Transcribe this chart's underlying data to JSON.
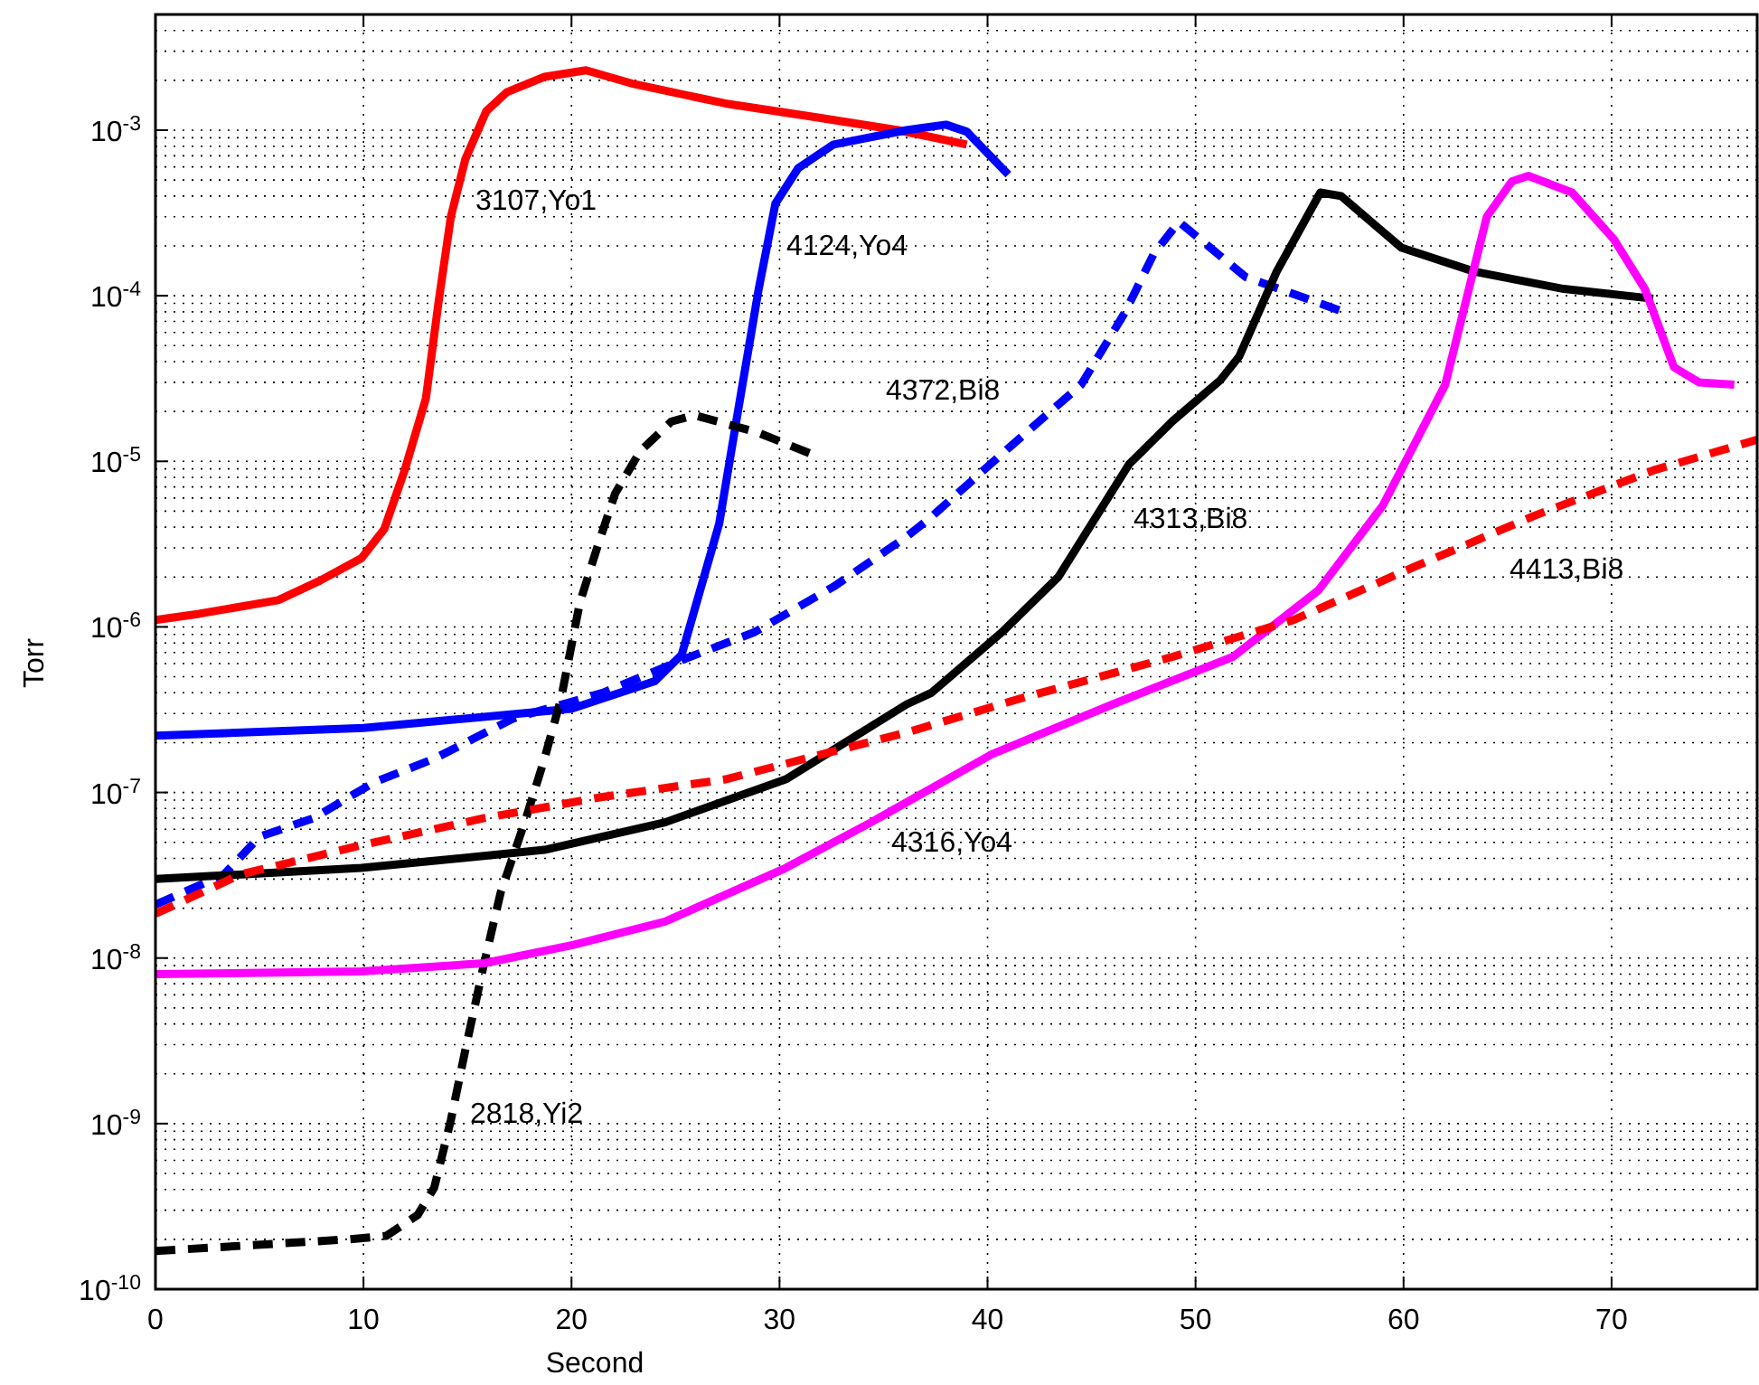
{
  "chart_data": {
    "type": "line",
    "xlabel": "Second",
    "ylabel": "Torr",
    "log": "y",
    "grid": true,
    "marker": "none",
    "xlim": [
      0,
      77
    ],
    "xticks": [
      0,
      10,
      20,
      30,
      40,
      50,
      60,
      70
    ],
    "ylim": [
      1e-10,
      0.005
    ],
    "yticks": [
      {
        "value": 1e-10,
        "label": "10$^{-10}$"
      },
      {
        "value": 1e-09,
        "label": "10$^{-9}$"
      },
      {
        "value": 1e-08,
        "label": "10$^{-8}$"
      },
      {
        "value": 1e-07,
        "label": "10$^{-7}$"
      },
      {
        "value": 1e-06,
        "label": "10$^{-6}$"
      },
      {
        "value": 1e-05,
        "label": "10$^{-5}$"
      },
      {
        "value": 0.0001,
        "label": "10$^{-4}$"
      },
      {
        "value": 0.001,
        "label": "10$^{-3}$"
      }
    ],
    "series": [
      {
        "name": "3107,Yo1",
        "color": "#ff0000",
        "line_style": "solid",
        "x": [
          0,
          2.1,
          5.9,
          7.9,
          9.9,
          11,
          12,
          13,
          13.6,
          14.2,
          14.9,
          15.9,
          16.9,
          18.7,
          20.7,
          23,
          27.4,
          31.7,
          35.7,
          39
        ],
        "values": [
          1.1e-06,
          1.2e-06,
          1.45e-06,
          1.9e-06,
          2.6e-06,
          3.9e-06,
          9e-06,
          2.4e-05,
          9e-05,
          0.0003,
          0.00067,
          0.0013,
          0.0017,
          0.0021,
          0.0023,
          0.0019,
          0.00145,
          0.0012,
          0.001,
          0.00082
        ]
      },
      {
        "name": "4124,Yo4",
        "color": "#0000ff",
        "line_style": "solid",
        "x": [
          0,
          10,
          20,
          24,
          25.3,
          27.1,
          28,
          29,
          29.8,
          30.9,
          32.6,
          36.1,
          38,
          39,
          41
        ],
        "values": [
          2.2e-07,
          2.45e-07,
          3.2e-07,
          4.7e-07,
          6.8e-07,
          4.2e-06,
          2e-05,
          0.00011,
          0.00036,
          0.00059,
          0.00082,
          0.001,
          0.00108,
          0.00098,
          0.00054
        ]
      },
      {
        "name": "2818,Yi2",
        "color": "#000000",
        "line_style": "dashed",
        "x": [
          0,
          9.3,
          11.1,
          12.6,
          13.4,
          14.2,
          14.9,
          15.8,
          16.6,
          17.8,
          18.7,
          19.5,
          20.4,
          21.3,
          22.1,
          23.3,
          24.8,
          25.9,
          28.9,
          32
        ],
        "values": [
          1.7e-10,
          2e-10,
          2.1e-10,
          2.8e-10,
          4.1e-10,
          1.05e-09,
          2.8e-09,
          9.3e-09,
          2.5e-08,
          6.9e-08,
          1.6e-07,
          3.7e-07,
          1.4e-06,
          3.2e-06,
          6.4e-06,
          1.15e-05,
          1.74e-05,
          1.9e-05,
          1.5e-05,
          1.05e-05
        ]
      },
      {
        "name": "4372,Bi8",
        "color": "#0000ff",
        "line_style": "dashed",
        "x": [
          0,
          3.3,
          5,
          7.6,
          10.5,
          13.4,
          17.2,
          21.5,
          25.3,
          28.8,
          32.6,
          36.1,
          37.2,
          41,
          44.5,
          46.6,
          48,
          49.2,
          52.4,
          57
        ],
        "values": [
          2.1e-08,
          3.2e-08,
          5.4e-08,
          7e-08,
          1.15e-07,
          1.6e-07,
          2.8e-07,
          4e-07,
          6.3e-07,
          9.3e-07,
          1.75e-06,
          3.5e-06,
          4.5e-06,
          1.2e-05,
          2.9e-05,
          7.9e-05,
          0.00018,
          0.00028,
          0.00013,
          8.1e-05
        ]
      },
      {
        "name": "4313,Bi8",
        "color": "#000000",
        "line_style": "solid",
        "x": [
          0,
          9.9,
          18.7,
          24.5,
          30.3,
          36.1,
          37.3,
          40.7,
          43.4,
          46.8,
          48.9,
          51.2,
          52.1,
          53.9,
          56,
          57,
          59.9,
          63.4,
          67.7,
          72
        ],
        "values": [
          3e-08,
          3.5e-08,
          4.5e-08,
          6.6e-08,
          1.2e-07,
          3.4e-07,
          4e-07,
          9.3e-07,
          2e-06,
          9.6e-06,
          1.75e-05,
          3.1e-05,
          4.3e-05,
          0.00014,
          0.00042,
          0.0004,
          0.000195,
          0.00014,
          0.00011,
          9.6e-05
        ]
      },
      {
        "name": "4316,Yo4",
        "color": "#ff00ff",
        "line_style": "solid",
        "x": [
          0,
          9.9,
          15.8,
          20.1,
          24.5,
          30.3,
          34.4,
          40.2,
          46,
          51.8,
          55.9,
          59,
          62,
          64,
          65.2,
          66,
          68.1,
          70.1,
          71.6,
          73,
          74.2,
          75.9
        ],
        "values": [
          8e-09,
          8.3e-09,
          9.3e-09,
          1.2e-08,
          1.66e-08,
          3.5e-08,
          6.6e-08,
          1.7e-07,
          3.4e-07,
          6.6e-07,
          1.66e-06,
          5.4e-06,
          2.9e-05,
          0.0003,
          0.00049,
          0.00053,
          0.00042,
          0.00022,
          0.00011,
          3.7e-05,
          3e-05,
          2.9e-05
        ]
      },
      {
        "name": "4413,Bi8",
        "color": "#ff0000",
        "line_style": "dashed",
        "x": [
          0,
          4.1,
          9.9,
          15.8,
          21.5,
          27.4,
          36.1,
          41.6,
          48.9,
          54.7,
          60.5,
          66.3,
          72.1,
          77
        ],
        "values": [
          1.85e-08,
          3.2e-08,
          4.8e-08,
          7e-08,
          9.4e-08,
          1.2e-07,
          2.3e-07,
          3.7e-07,
          6.6e-07,
          1.1e-06,
          2.3e-06,
          4.7e-06,
          8.9e-06,
          1.35e-05
        ]
      }
    ]
  }
}
